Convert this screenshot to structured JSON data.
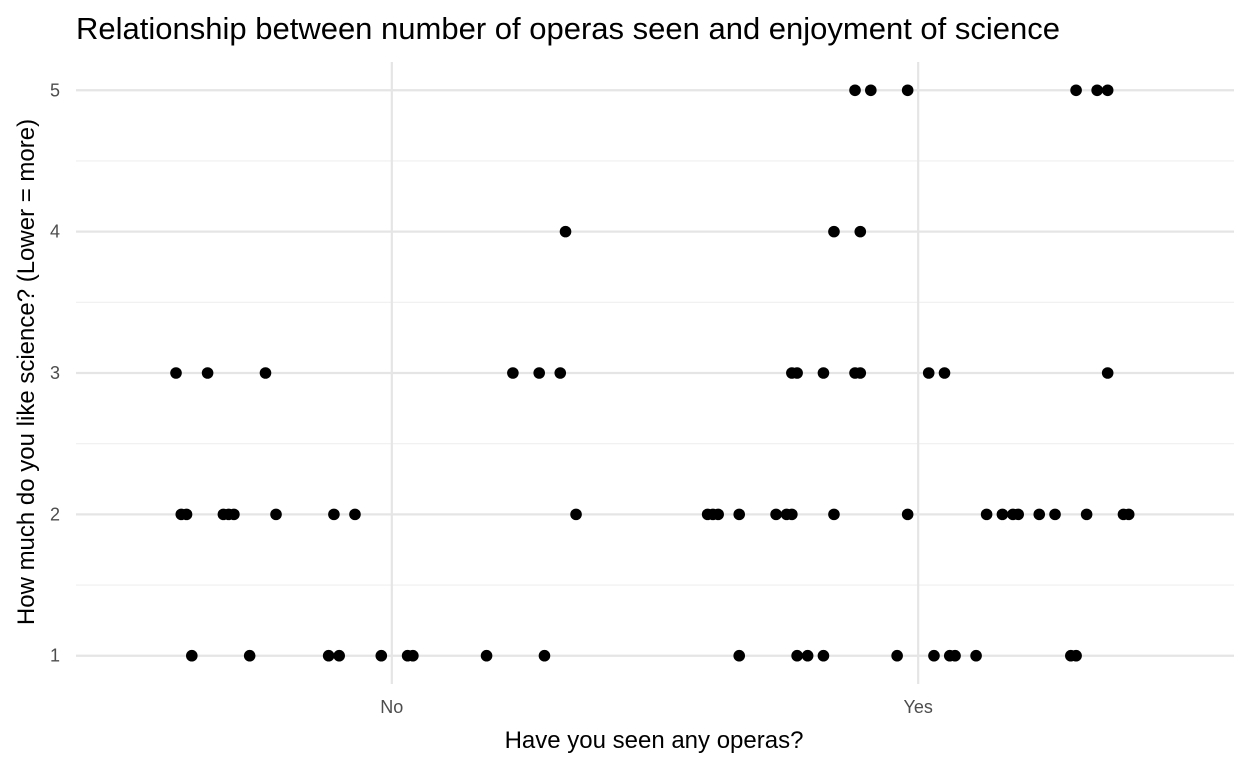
{
  "chart_data": {
    "type": "scatter",
    "title": "Relationship between number of operas seen and enjoyment of science",
    "xlabel": "Have you seen any operas?",
    "ylabel": "How much do you like science? (Lower = more)",
    "x_categories": [
      "No",
      "Yes"
    ],
    "y_ticks": [
      1,
      2,
      3,
      4,
      5
    ],
    "ylim": [
      0.8,
      5.2
    ],
    "x_jittered_range": [
      0.4,
      2.6
    ],
    "grid": true,
    "points": [
      {
        "x": 0.59,
        "y": 3
      },
      {
        "x": 0.65,
        "y": 3
      },
      {
        "x": 0.76,
        "y": 3
      },
      {
        "x": 1.23,
        "y": 3
      },
      {
        "x": 1.28,
        "y": 3
      },
      {
        "x": 1.32,
        "y": 3
      },
      {
        "x": 1.33,
        "y": 4
      },
      {
        "x": 0.6,
        "y": 2
      },
      {
        "x": 0.61,
        "y": 2
      },
      {
        "x": 0.68,
        "y": 2
      },
      {
        "x": 0.69,
        "y": 2
      },
      {
        "x": 0.7,
        "y": 2
      },
      {
        "x": 0.78,
        "y": 2
      },
      {
        "x": 0.89,
        "y": 2
      },
      {
        "x": 0.93,
        "y": 2
      },
      {
        "x": 1.35,
        "y": 2
      },
      {
        "x": 0.62,
        "y": 1
      },
      {
        "x": 0.73,
        "y": 1
      },
      {
        "x": 0.88,
        "y": 1
      },
      {
        "x": 0.9,
        "y": 1
      },
      {
        "x": 0.98,
        "y": 1
      },
      {
        "x": 1.03,
        "y": 1
      },
      {
        "x": 1.04,
        "y": 1
      },
      {
        "x": 1.18,
        "y": 1
      },
      {
        "x": 1.29,
        "y": 1
      },
      {
        "x": 1.88,
        "y": 5
      },
      {
        "x": 1.91,
        "y": 5
      },
      {
        "x": 1.98,
        "y": 5
      },
      {
        "x": 2.3,
        "y": 5
      },
      {
        "x": 2.34,
        "y": 5
      },
      {
        "x": 2.36,
        "y": 5
      },
      {
        "x": 1.84,
        "y": 4
      },
      {
        "x": 1.89,
        "y": 4
      },
      {
        "x": 1.76,
        "y": 3
      },
      {
        "x": 1.77,
        "y": 3
      },
      {
        "x": 1.82,
        "y": 3
      },
      {
        "x": 1.88,
        "y": 3
      },
      {
        "x": 1.89,
        "y": 3
      },
      {
        "x": 2.02,
        "y": 3
      },
      {
        "x": 2.05,
        "y": 3
      },
      {
        "x": 2.36,
        "y": 3
      },
      {
        "x": 1.6,
        "y": 2
      },
      {
        "x": 1.61,
        "y": 2
      },
      {
        "x": 1.62,
        "y": 2
      },
      {
        "x": 1.66,
        "y": 2
      },
      {
        "x": 1.73,
        "y": 2
      },
      {
        "x": 1.75,
        "y": 2
      },
      {
        "x": 1.76,
        "y": 2
      },
      {
        "x": 1.84,
        "y": 2
      },
      {
        "x": 1.98,
        "y": 2
      },
      {
        "x": 2.13,
        "y": 2
      },
      {
        "x": 2.16,
        "y": 2
      },
      {
        "x": 2.18,
        "y": 2
      },
      {
        "x": 2.19,
        "y": 2
      },
      {
        "x": 2.23,
        "y": 2
      },
      {
        "x": 2.26,
        "y": 2
      },
      {
        "x": 2.32,
        "y": 2
      },
      {
        "x": 2.39,
        "y": 2
      },
      {
        "x": 2.4,
        "y": 2
      },
      {
        "x": 1.66,
        "y": 1
      },
      {
        "x": 1.77,
        "y": 1
      },
      {
        "x": 1.79,
        "y": 1
      },
      {
        "x": 1.82,
        "y": 1
      },
      {
        "x": 1.96,
        "y": 1
      },
      {
        "x": 2.03,
        "y": 1
      },
      {
        "x": 2.06,
        "y": 1
      },
      {
        "x": 2.07,
        "y": 1
      },
      {
        "x": 2.11,
        "y": 1
      },
      {
        "x": 2.29,
        "y": 1
      },
      {
        "x": 2.3,
        "y": 1
      }
    ]
  }
}
